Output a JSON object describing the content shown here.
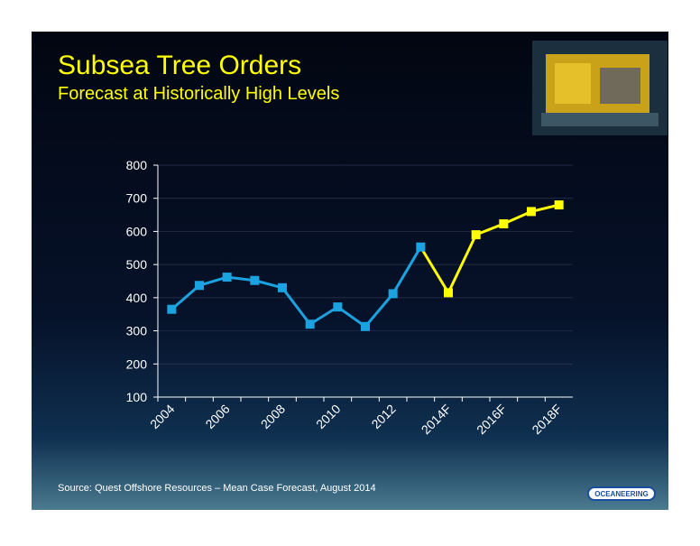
{
  "chart_data": {
    "type": "line",
    "title": "Subsea Tree Orders",
    "subtitle": "Forecast at Historically High Levels",
    "categories": [
      "2004",
      null,
      "2006",
      null,
      "2008",
      null,
      "2010",
      null,
      "2012",
      null,
      "2014F",
      null,
      "2016F",
      null,
      "2018F"
    ],
    "series": [
      {
        "color": "#1aa3e0",
        "values": [
          365,
          437,
          462,
          452,
          430,
          320,
          372,
          313,
          412,
          553,
          null,
          null,
          null,
          null,
          null
        ]
      },
      {
        "color": "#ffff00",
        "values": [
          null,
          null,
          null,
          null,
          null,
          null,
          null,
          null,
          null,
          553,
          415,
          590,
          623,
          660,
          680
        ]
      }
    ],
    "ylim": [
      100,
      800
    ],
    "yticks": [
      100,
      200,
      300,
      400,
      500,
      600,
      700,
      800
    ],
    "grid": true,
    "source": "Source:  Quest Offshore Resources – Mean Case Forecast, August 2014",
    "logo": "OCEANEERING"
  }
}
